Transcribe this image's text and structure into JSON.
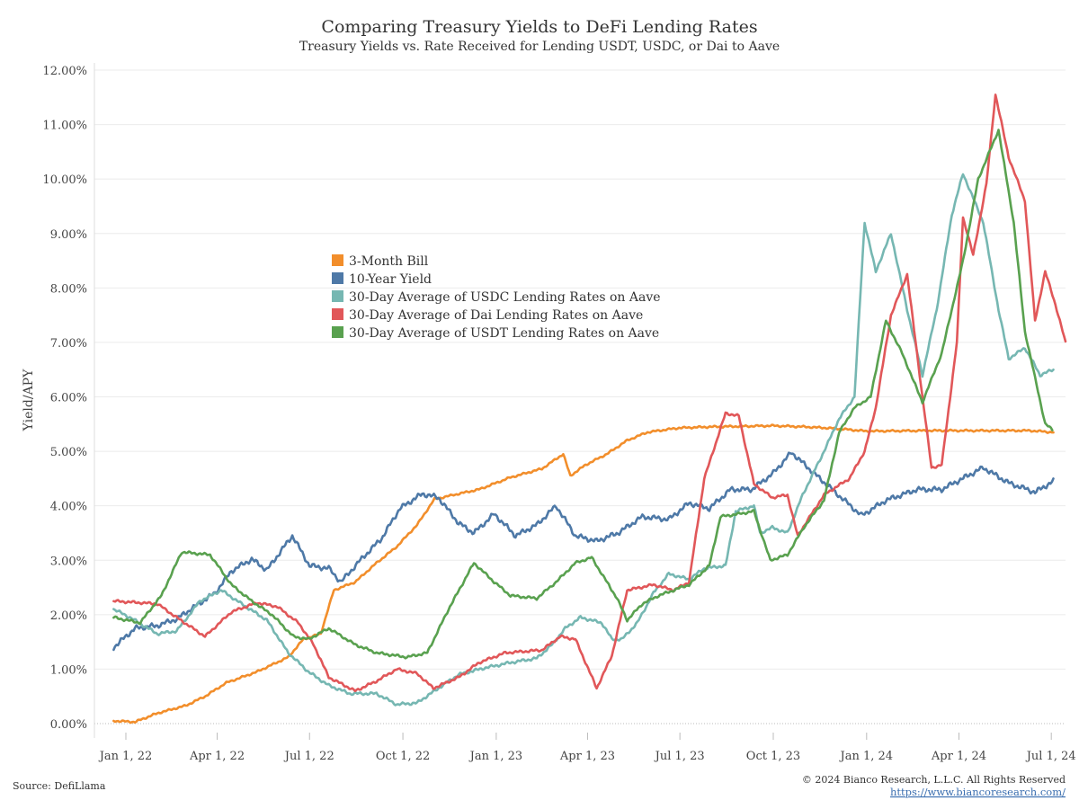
{
  "chart_data": {
    "type": "line",
    "title": "Comparing Treasury Yields to DeFi Lending Rates",
    "subtitle": "Treasury Yields vs. Rate Received for Lending USDT, USDC, or Dai to Aave",
    "ylabel": "Yield/APY",
    "xlabel": "",
    "ylim": [
      0,
      12
    ],
    "xlim": [
      "2021-12-01",
      "2024-07-15"
    ],
    "y_ticks": [
      "0.00%",
      "1.00%",
      "2.00%",
      "3.00%",
      "4.00%",
      "5.00%",
      "6.00%",
      "7.00%",
      "8.00%",
      "9.00%",
      "10.00%",
      "11.00%",
      "12.00%"
    ],
    "x_ticks": [
      {
        "date": "2022-01-01",
        "label": "Jan 1, 22"
      },
      {
        "date": "2022-04-01",
        "label": "Apr 1, 22"
      },
      {
        "date": "2022-07-01",
        "label": "Jul 1, 22"
      },
      {
        "date": "2022-10-01",
        "label": "Oct 1, 22"
      },
      {
        "date": "2023-01-01",
        "label": "Jan 1, 23"
      },
      {
        "date": "2023-04-01",
        "label": "Apr 1, 23"
      },
      {
        "date": "2023-07-01",
        "label": "Jul 1, 23"
      },
      {
        "date": "2023-10-01",
        "label": "Oct 1, 23"
      },
      {
        "date": "2024-01-01",
        "label": "Jan 1, 24"
      },
      {
        "date": "2024-04-01",
        "label": "Apr 1, 24"
      },
      {
        "date": "2024-07-01",
        "label": "Jul 1, 24"
      }
    ],
    "grid": true,
    "legend_position": "center-left",
    "series": [
      {
        "name": "3-Month Bill",
        "color": "#f28e2b",
        "points": [
          [
            "2021-12-20",
            0.05
          ],
          [
            "2022-01-10",
            0.03
          ],
          [
            "2022-02-01",
            0.19
          ],
          [
            "2022-03-01",
            0.33
          ],
          [
            "2022-03-20",
            0.5
          ],
          [
            "2022-04-10",
            0.75
          ],
          [
            "2022-05-10",
            0.95
          ],
          [
            "2022-06-10",
            1.22
          ],
          [
            "2022-06-25",
            1.55
          ],
          [
            "2022-07-12",
            1.65
          ],
          [
            "2022-07-25",
            2.45
          ],
          [
            "2022-08-15",
            2.6
          ],
          [
            "2022-09-05",
            2.95
          ],
          [
            "2022-09-25",
            3.25
          ],
          [
            "2022-10-15",
            3.65
          ],
          [
            "2022-11-01",
            4.12
          ],
          [
            "2022-11-20",
            4.2
          ],
          [
            "2022-12-15",
            4.3
          ],
          [
            "2023-01-15",
            4.52
          ],
          [
            "2023-02-15",
            4.68
          ],
          [
            "2023-03-08",
            4.95
          ],
          [
            "2023-03-15",
            4.55
          ],
          [
            "2023-03-30",
            4.75
          ],
          [
            "2023-04-20",
            4.95
          ],
          [
            "2023-05-10",
            5.2
          ],
          [
            "2023-05-30",
            5.35
          ],
          [
            "2023-06-30",
            5.43
          ],
          [
            "2023-08-01",
            5.45
          ],
          [
            "2023-09-01",
            5.46
          ],
          [
            "2023-10-01",
            5.47
          ],
          [
            "2023-11-01",
            5.45
          ],
          [
            "2023-12-01",
            5.42
          ],
          [
            "2024-01-01",
            5.37
          ],
          [
            "2024-03-01",
            5.38
          ],
          [
            "2024-05-01",
            5.38
          ],
          [
            "2024-06-10",
            5.38
          ],
          [
            "2024-07-03",
            5.35
          ]
        ]
      },
      {
        "name": "10-Year Yield",
        "color": "#4e79a7",
        "points": [
          [
            "2021-12-20",
            1.4
          ],
          [
            "2022-01-10",
            1.75
          ],
          [
            "2022-02-01",
            1.8
          ],
          [
            "2022-02-20",
            1.92
          ],
          [
            "2022-03-10",
            2.15
          ],
          [
            "2022-03-30",
            2.4
          ],
          [
            "2022-04-15",
            2.8
          ],
          [
            "2022-05-05",
            3.02
          ],
          [
            "2022-05-20",
            2.82
          ],
          [
            "2022-06-14",
            3.45
          ],
          [
            "2022-07-01",
            2.9
          ],
          [
            "2022-07-20",
            2.85
          ],
          [
            "2022-08-01",
            2.6
          ],
          [
            "2022-08-20",
            3.0
          ],
          [
            "2022-09-10",
            3.4
          ],
          [
            "2022-09-28",
            3.95
          ],
          [
            "2022-10-20",
            4.22
          ],
          [
            "2022-11-05",
            4.15
          ],
          [
            "2022-11-25",
            3.68
          ],
          [
            "2022-12-10",
            3.5
          ],
          [
            "2022-12-30",
            3.85
          ],
          [
            "2023-01-20",
            3.45
          ],
          [
            "2023-02-10",
            3.65
          ],
          [
            "2023-03-01",
            4.0
          ],
          [
            "2023-03-20",
            3.45
          ],
          [
            "2023-04-10",
            3.35
          ],
          [
            "2023-05-01",
            3.5
          ],
          [
            "2023-05-25",
            3.8
          ],
          [
            "2023-06-20",
            3.75
          ],
          [
            "2023-07-10",
            4.05
          ],
          [
            "2023-07-30",
            3.95
          ],
          [
            "2023-08-20",
            4.3
          ],
          [
            "2023-09-10",
            4.3
          ],
          [
            "2023-10-01",
            4.6
          ],
          [
            "2023-10-19",
            4.98
          ],
          [
            "2023-11-10",
            4.6
          ],
          [
            "2023-12-01",
            4.25
          ],
          [
            "2023-12-27",
            3.82
          ],
          [
            "2024-01-20",
            4.1
          ],
          [
            "2024-02-20",
            4.3
          ],
          [
            "2024-03-15",
            4.3
          ],
          [
            "2024-04-25",
            4.7
          ],
          [
            "2024-05-20",
            4.42
          ],
          [
            "2024-06-15",
            4.25
          ],
          [
            "2024-07-03",
            4.45
          ]
        ]
      },
      {
        "name": "30-Day Average of USDC Lending Rates on Aave",
        "color": "#76b7b2",
        "points": [
          [
            "2021-12-20",
            2.1
          ],
          [
            "2022-01-05",
            1.95
          ],
          [
            "2022-02-01",
            1.65
          ],
          [
            "2022-02-20",
            1.7
          ],
          [
            "2022-03-15",
            2.25
          ],
          [
            "2022-04-05",
            2.45
          ],
          [
            "2022-04-25",
            2.2
          ],
          [
            "2022-05-20",
            1.9
          ],
          [
            "2022-06-10",
            1.3
          ],
          [
            "2022-06-30",
            0.95
          ],
          [
            "2022-07-20",
            0.7
          ],
          [
            "2022-08-10",
            0.55
          ],
          [
            "2022-09-05",
            0.55
          ],
          [
            "2022-09-25",
            0.35
          ],
          [
            "2022-10-15",
            0.38
          ],
          [
            "2022-11-05",
            0.65
          ],
          [
            "2022-11-25",
            0.9
          ],
          [
            "2022-12-20",
            1.02
          ],
          [
            "2023-01-15",
            1.12
          ],
          [
            "2023-02-10",
            1.2
          ],
          [
            "2023-02-25",
            1.45
          ],
          [
            "2023-03-10",
            1.75
          ],
          [
            "2023-03-25",
            1.95
          ],
          [
            "2023-04-15",
            1.85
          ],
          [
            "2023-04-25",
            1.55
          ],
          [
            "2023-05-05",
            1.55
          ],
          [
            "2023-05-20",
            1.85
          ],
          [
            "2023-06-05",
            2.4
          ],
          [
            "2023-06-20",
            2.75
          ],
          [
            "2023-07-10",
            2.65
          ],
          [
            "2023-07-25",
            2.85
          ],
          [
            "2023-08-15",
            2.9
          ],
          [
            "2023-08-25",
            3.9
          ],
          [
            "2023-09-12",
            4.0
          ],
          [
            "2023-09-18",
            3.5
          ],
          [
            "2023-09-30",
            3.6
          ],
          [
            "2023-10-15",
            3.5
          ],
          [
            "2023-10-30",
            4.2
          ],
          [
            "2023-11-20",
            5.0
          ],
          [
            "2023-12-05",
            5.6
          ],
          [
            "2023-12-20",
            6.0
          ],
          [
            "2023-12-30",
            9.2
          ],
          [
            "2024-01-10",
            8.3
          ],
          [
            "2024-01-25",
            9.0
          ],
          [
            "2024-02-10",
            7.6
          ],
          [
            "2024-02-25",
            6.4
          ],
          [
            "2024-03-10",
            7.6
          ],
          [
            "2024-03-25",
            9.35
          ],
          [
            "2024-04-05",
            10.1
          ],
          [
            "2024-04-25",
            9.2
          ],
          [
            "2024-05-10",
            7.6
          ],
          [
            "2024-05-20",
            6.7
          ],
          [
            "2024-06-05",
            6.9
          ],
          [
            "2024-06-20",
            6.4
          ],
          [
            "2024-07-03",
            6.5
          ]
        ]
      },
      {
        "name": "30-Day Average of Dai Lending Rates on Aave",
        "color": "#e15759",
        "points": [
          [
            "2021-12-20",
            2.25
          ],
          [
            "2022-02-01",
            2.2
          ],
          [
            "2022-02-20",
            1.95
          ],
          [
            "2022-03-20",
            1.6
          ],
          [
            "2022-04-15",
            2.05
          ],
          [
            "2022-05-10",
            2.22
          ],
          [
            "2022-05-30",
            2.15
          ],
          [
            "2022-06-20",
            1.85
          ],
          [
            "2022-07-05",
            1.45
          ],
          [
            "2022-07-20",
            0.85
          ],
          [
            "2022-08-15",
            0.6
          ],
          [
            "2022-09-05",
            0.78
          ],
          [
            "2022-09-25",
            1.0
          ],
          [
            "2022-10-15",
            0.92
          ],
          [
            "2022-10-31",
            0.65
          ],
          [
            "2022-11-25",
            0.85
          ],
          [
            "2022-12-15",
            1.12
          ],
          [
            "2023-01-10",
            1.3
          ],
          [
            "2023-02-15",
            1.35
          ],
          [
            "2023-03-05",
            1.6
          ],
          [
            "2023-03-20",
            1.55
          ],
          [
            "2023-04-10",
            0.65
          ],
          [
            "2023-04-25",
            1.25
          ],
          [
            "2023-05-10",
            2.45
          ],
          [
            "2023-06-05",
            2.55
          ],
          [
            "2023-06-25",
            2.45
          ],
          [
            "2023-07-10",
            2.6
          ],
          [
            "2023-07-25",
            4.5
          ],
          [
            "2023-08-15",
            5.7
          ],
          [
            "2023-08-28",
            5.65
          ],
          [
            "2023-09-12",
            4.4
          ],
          [
            "2023-09-30",
            4.15
          ],
          [
            "2023-10-15",
            4.2
          ],
          [
            "2023-10-25",
            3.45
          ],
          [
            "2023-11-20",
            4.2
          ],
          [
            "2023-12-15",
            4.5
          ],
          [
            "2023-12-30",
            5.0
          ],
          [
            "2024-01-10",
            5.8
          ],
          [
            "2024-01-25",
            7.5
          ],
          [
            "2024-02-10",
            8.25
          ],
          [
            "2024-02-25",
            6.0
          ],
          [
            "2024-03-05",
            4.7
          ],
          [
            "2024-03-15",
            4.75
          ],
          [
            "2024-03-30",
            7.0
          ],
          [
            "2024-04-05",
            9.3
          ],
          [
            "2024-04-15",
            8.6
          ],
          [
            "2024-04-28",
            9.9
          ],
          [
            "2024-05-07",
            11.55
          ],
          [
            "2024-05-20",
            10.4
          ],
          [
            "2024-06-05",
            9.6
          ],
          [
            "2024-06-15",
            7.4
          ],
          [
            "2024-06-25",
            8.3
          ],
          [
            "2024-07-05",
            7.7
          ],
          [
            "2024-07-15",
            7.0
          ]
        ]
      },
      {
        "name": "30-Day Average of USDT Lending Rates on Aave",
        "color": "#59a14f",
        "points": [
          [
            "2021-12-20",
            1.95
          ],
          [
            "2022-01-15",
            1.85
          ],
          [
            "2022-02-05",
            2.35
          ],
          [
            "2022-02-25",
            3.15
          ],
          [
            "2022-03-25",
            3.1
          ],
          [
            "2022-04-15",
            2.55
          ],
          [
            "2022-05-05",
            2.25
          ],
          [
            "2022-05-25",
            2.0
          ],
          [
            "2022-06-15",
            1.6
          ],
          [
            "2022-06-30",
            1.55
          ],
          [
            "2022-07-20",
            1.75
          ],
          [
            "2022-08-15",
            1.45
          ],
          [
            "2022-09-05",
            1.3
          ],
          [
            "2022-10-05",
            1.22
          ],
          [
            "2022-10-25",
            1.3
          ],
          [
            "2022-11-15",
            2.1
          ],
          [
            "2022-12-10",
            2.95
          ],
          [
            "2022-12-30",
            2.6
          ],
          [
            "2023-01-15",
            2.35
          ],
          [
            "2023-02-10",
            2.3
          ],
          [
            "2023-03-01",
            2.6
          ],
          [
            "2023-03-20",
            2.95
          ],
          [
            "2023-04-05",
            3.05
          ],
          [
            "2023-04-15",
            2.75
          ],
          [
            "2023-04-30",
            2.3
          ],
          [
            "2023-05-10",
            1.9
          ],
          [
            "2023-05-25",
            2.2
          ],
          [
            "2023-06-10",
            2.35
          ],
          [
            "2023-07-10",
            2.55
          ],
          [
            "2023-07-30",
            2.9
          ],
          [
            "2023-08-10",
            3.8
          ],
          [
            "2023-08-28",
            3.85
          ],
          [
            "2023-09-12",
            3.9
          ],
          [
            "2023-09-28",
            3.0
          ],
          [
            "2023-10-15",
            3.1
          ],
          [
            "2023-10-31",
            3.6
          ],
          [
            "2023-11-20",
            4.1
          ],
          [
            "2023-12-05",
            5.35
          ],
          [
            "2023-12-20",
            5.8
          ],
          [
            "2024-01-05",
            6.0
          ],
          [
            "2024-01-20",
            7.4
          ],
          [
            "2024-02-05",
            6.8
          ],
          [
            "2024-02-25",
            5.9
          ],
          [
            "2024-03-15",
            6.8
          ],
          [
            "2024-04-05",
            8.5
          ],
          [
            "2024-04-20",
            10.0
          ],
          [
            "2024-05-10",
            10.9
          ],
          [
            "2024-05-25",
            9.2
          ],
          [
            "2024-06-05",
            7.2
          ],
          [
            "2024-06-25",
            5.5
          ],
          [
            "2024-07-02",
            5.4
          ]
        ]
      }
    ],
    "legend": [
      {
        "label": "3-Month Bill",
        "color": "#f28e2b"
      },
      {
        "label": "10-Year Yield",
        "color": "#4e79a7"
      },
      {
        "label": "30-Day Average of USDC Lending Rates on Aave",
        "color": "#76b7b2"
      },
      {
        "label": "30-Day Average of Dai Lending Rates on Aave",
        "color": "#e15759"
      },
      {
        "label": "30-Day Average of USDT Lending Rates on Aave",
        "color": "#59a14f"
      }
    ]
  },
  "footer": {
    "source": "Source: DefiLlama",
    "copyright": "© 2024 Bianco Research, L.L.C. All Rights Reserved",
    "url": "https://www.biancoresearch.com/"
  }
}
